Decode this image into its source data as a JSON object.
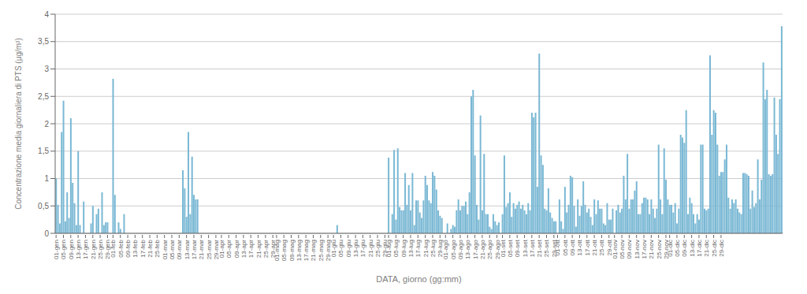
{
  "chart_data": {
    "type": "bar",
    "xlabel": "DATA, giorno (gg:mm)",
    "ylabel": "Concentrazione media giornaliera  di PTS (μg/m³)",
    "color": "#7ab8d4",
    "grid": true,
    "ylim": [
      0,
      4
    ],
    "yticks": [
      0,
      {
        "value": 0.5,
        "label": "0,5"
      },
      1,
      {
        "value": 1.5,
        "label": "1,5"
      },
      2,
      {
        "value": 2.5,
        "label": "2,5"
      },
      3,
      {
        "value": 3.5,
        "label": "3,5"
      },
      4
    ],
    "categories": [
      "01-gen",
      null,
      null,
      null,
      "05-gen",
      null,
      null,
      null,
      "09-gen",
      null,
      null,
      null,
      "13-gen",
      null,
      null,
      null,
      "17-gen",
      null,
      null,
      null,
      "21-gen",
      null,
      null,
      null,
      "25-gen",
      null,
      null,
      null,
      "29-gen",
      null,
      null,
      "01-feb",
      null,
      null,
      null,
      "05-feb",
      null,
      null,
      null,
      "09-feb",
      null,
      null,
      null,
      "13-feb",
      null,
      null,
      null,
      "17-feb",
      null,
      null,
      null,
      "21-feb",
      null,
      null,
      null,
      "25-feb",
      null,
      null,
      null,
      "01-mar",
      null,
      null,
      null,
      "05-mar",
      null,
      null,
      null,
      "09-mar",
      null,
      null,
      null,
      "13-mar",
      null,
      null,
      null,
      "17-mar",
      null,
      null,
      null,
      "21-mar",
      null,
      null,
      null,
      "25-mar",
      null,
      null,
      null,
      "29-mar",
      null,
      null,
      "01-apr",
      null,
      null,
      null,
      "05-apr",
      null,
      null,
      null,
      "09-apr",
      null,
      null,
      null,
      "13-apr",
      null,
      null,
      null,
      "17-apr",
      null,
      null,
      null,
      "21-apr",
      null,
      null,
      null,
      "25-apr",
      null,
      null,
      null,
      "29-apr",
      null,
      "01-mag",
      null,
      null,
      null,
      "05-mag",
      null,
      null,
      null,
      "09-mag",
      null,
      null,
      null,
      "13-mag",
      null,
      null,
      null,
      "17-mag",
      null,
      null,
      null,
      "21-mag",
      null,
      null,
      null,
      "25-mag",
      null,
      null,
      null,
      "29-mag",
      null,
      null,
      "01-giu",
      null,
      null,
      null,
      "05-giu",
      null,
      null,
      null,
      "09-giu",
      null,
      null,
      null,
      "13-giu",
      null,
      null,
      null,
      "17-giu",
      null,
      null,
      null,
      "21-giu",
      null,
      null,
      null,
      "25-giu",
      null,
      null,
      null,
      "29-giu",
      null,
      "01-lug",
      null,
      null,
      null,
      "05-lug",
      null,
      null,
      null,
      "09-lug",
      null,
      null,
      null,
      "13-lug",
      null,
      null,
      null,
      "17-lug",
      null,
      null,
      null,
      "21-lug",
      null,
      null,
      null,
      "25-lug",
      null,
      null,
      null,
      "29-lug",
      null,
      null,
      "01-ago",
      null,
      null,
      null,
      "05-ago",
      null,
      null,
      null,
      "09-ago",
      null,
      null,
      null,
      "13-ago",
      null,
      null,
      null,
      "17-ago",
      null,
      null,
      null,
      "21-ago",
      null,
      null,
      null,
      "25-ago",
      null,
      null,
      null,
      "29-ago",
      null,
      null,
      "01-set",
      null,
      null,
      null,
      "05-set",
      null,
      null,
      null,
      "09-set",
      null,
      null,
      null,
      "13-set",
      null,
      null,
      null,
      "17-set",
      null,
      null,
      null,
      "21-set",
      null,
      null,
      null,
      "25-set",
      null,
      null,
      null,
      "29-set",
      null,
      "01-ott",
      null,
      null,
      null,
      "05-ott",
      null,
      null,
      null,
      "09-ott",
      null,
      null,
      null,
      "13-ott",
      null,
      null,
      null,
      "17-ott",
      null,
      null,
      null,
      "21-ott",
      null,
      null,
      null,
      "25-ott",
      null,
      null,
      null,
      "29-ott",
      null,
      null,
      "01-nov",
      null,
      null,
      null,
      "05-nov",
      null,
      null,
      null,
      "09-nov",
      null,
      null,
      null,
      "13-nov",
      null,
      null,
      null,
      "17-nov",
      null,
      null,
      null,
      "21-nov",
      null,
      null,
      null,
      "25-nov",
      null,
      null,
      null,
      "29-nov",
      null,
      "01-dic",
      null,
      null,
      null,
      "05-dic",
      null,
      null,
      null,
      "09-dic",
      null,
      null,
      null,
      "13-dic",
      null,
      null,
      null,
      "17-dic",
      null,
      null,
      null,
      "21-dic",
      null,
      null,
      null,
      "25-dic",
      null,
      null,
      null,
      "29-dic",
      null,
      null,
      null,
      null,
      null,
      null,
      null,
      null,
      null,
      null,
      null,
      null,
      null,
      null,
      null,
      null,
      null,
      null,
      null,
      null,
      null,
      null,
      null,
      null,
      null,
      null,
      null,
      null,
      null,
      null,
      null,
      null,
      null
    ],
    "values": [
      1.0,
      0.52,
      0.18,
      1.85,
      2.42,
      0.22,
      0.75,
      0.28,
      2.1,
      0.92,
      0.55,
      0.15,
      1.5,
      0.15,
      0.0,
      0.58,
      0.0,
      0.0,
      0.0,
      0.18,
      0.5,
      0.0,
      0.35,
      0.45,
      0.0,
      0.75,
      0.15,
      0.2,
      0.2,
      0.0,
      0.0,
      2.82,
      0.7,
      0.0,
      0.2,
      0.08,
      0.0,
      0.35,
      0.0,
      0.0,
      0.0,
      0.0,
      0.0,
      0.0,
      0.0,
      0.0,
      0.0,
      0.0,
      0.0,
      0.0,
      0.0,
      0.0,
      0.0,
      0.0,
      0.0,
      0.0,
      0.0,
      0.0,
      0.0,
      0.0,
      0.0,
      0.0,
      0.0,
      0.0,
      0.0,
      0.0,
      0.0,
      0.0,
      0.0,
      1.15,
      0.82,
      0.3,
      1.85,
      0.35,
      1.4,
      0.7,
      0.62,
      0.62,
      0.0,
      0.0,
      0.0,
      0.0,
      0.0,
      0.0,
      0.0,
      0.0,
      0.0,
      0.0,
      0.0,
      0.0,
      0.0,
      0.0,
      0.0,
      0.0,
      0.0,
      0.0,
      0.0,
      0.0,
      0.0,
      0.0,
      0.0,
      0.0,
      0.0,
      0.0,
      0.0,
      0.0,
      0.0,
      0.0,
      0.0,
      0.0,
      0.0,
      0.0,
      0.0,
      0.0,
      0.0,
      0.0,
      0.0,
      0.0,
      0.0,
      0.0,
      0.0,
      0.0,
      0.0,
      0.0,
      0.0,
      0.0,
      0.0,
      0.0,
      0.0,
      0.0,
      0.0,
      0.0,
      0.0,
      0.0,
      0.0,
      0.0,
      0.0,
      0.0,
      0.0,
      0.0,
      0.0,
      0.0,
      0.0,
      0.0,
      0.0,
      0.0,
      0.0,
      0.0,
      0.0,
      0.0,
      0.0,
      0.0,
      0.0,
      0.15,
      0.0,
      0.0,
      0.0,
      0.0,
      0.0,
      0.0,
      0.0,
      0.0,
      0.0,
      0.0,
      0.0,
      0.0,
      0.0,
      0.0,
      0.0,
      0.0,
      0.0,
      0.0,
      0.0,
      0.0,
      0.0,
      0.0,
      0.0,
      0.0,
      0.0,
      0.0,
      0.0,
      1.38,
      0.0,
      0.35,
      1.52,
      0.25,
      1.55,
      0.48,
      0.42,
      0.42,
      1.1,
      0.52,
      0.88,
      0.42,
      1.1,
      0.15,
      0.6,
      0.6,
      0.38,
      0.28,
      0.6,
      1.05,
      0.88,
      0.6,
      0.55,
      1.12,
      1.05,
      0.8,
      0.42,
      0.32,
      0.28,
      0.0,
      0.0,
      0.18,
      0.0,
      0.08,
      0.15,
      0.12,
      0.42,
      0.62,
      0.42,
      0.5,
      0.5,
      0.58,
      0.35,
      0.75,
      2.5,
      2.62,
      1.42,
      0.52,
      0.25,
      2.15,
      0.42,
      1.45,
      0.35,
      0.35,
      0.12,
      0.08,
      0.35,
      0.22,
      0.15,
      0.2,
      0.0,
      0.35,
      1.42,
      0.48,
      0.55,
      0.75,
      0.3,
      0.55,
      0.45,
      0.52,
      0.58,
      0.45,
      0.52,
      0.42,
      0.35,
      0.55,
      0.42,
      2.2,
      2.12,
      2.2,
      0.85,
      3.28,
      1.42,
      1.25,
      0.45,
      0.42,
      0.82,
      0.38,
      0.28,
      0.22,
      0.22,
      0.0,
      0.62,
      0.22,
      0.08,
      0.85,
      0.38,
      0.52,
      1.05,
      1.02,
      0.5,
      0.12,
      0.62,
      0.32,
      0.5,
      0.95,
      0.52,
      0.38,
      0.45,
      0.3,
      0.15,
      0.62,
      0.35,
      0.6,
      0.45,
      0.45,
      0.18,
      0.15,
      0.55,
      0.25,
      0.25,
      0.45,
      0.0,
      0.42,
      0.52,
      0.38,
      0.45,
      1.05,
      0.62,
      1.45,
      0.45,
      0.62,
      0.62,
      0.78,
      0.95,
      0.35,
      0.35,
      0.55,
      0.65,
      0.65,
      0.62,
      0.35,
      0.62,
      0.45,
      0.28,
      0.45,
      1.62,
      0.62,
      0.35,
      1.55,
      0.98,
      0.62,
      0.52,
      0.52,
      0.38,
      0.55,
      0.18,
      0.45,
      1.8,
      1.75,
      1.65,
      2.25,
      0.35,
      0.65,
      0.55,
      0.35,
      0.18,
      0.35,
      0.25,
      1.62,
      1.62,
      0.45,
      0.42,
      0.45,
      3.25,
      1.8,
      2.25,
      2.2,
      1.62,
      1.05,
      1.12,
      1.12,
      1.35,
      1.62,
      0.65,
      0.45,
      0.62,
      0.55,
      0.62,
      0.45,
      0.38,
      0.35,
      1.1,
      1.1,
      1.08,
      1.05,
      0.45,
      0.78,
      0.48,
      0.55,
      1.35,
      0.62,
      0.98,
      3.12,
      2.45,
      2.62,
      1.08,
      1.05,
      1.08,
      2.48,
      1.8,
      1.45,
      2.45,
      3.78
    ]
  }
}
